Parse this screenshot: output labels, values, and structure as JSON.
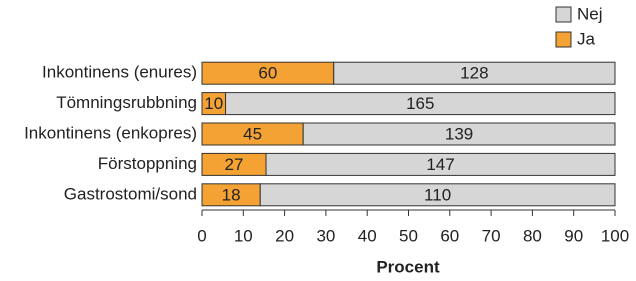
{
  "chart_data": {
    "type": "stacked-bar-horizontal",
    "xlabel": "Procent",
    "categories": [
      "Inkontinens (enures)",
      "Tömningsrubbning",
      "Inkontinens (enkopres)",
      "Förstoppning",
      "Gastrostomi/sond"
    ],
    "series": [
      {
        "name": "Ja",
        "color": "#f4a233",
        "values": [
          31.9,
          5.7,
          24.5,
          15.5,
          14.1
        ],
        "counts": [
          60,
          10,
          45,
          27,
          18
        ]
      },
      {
        "name": "Nej",
        "color": "#d6d6d6",
        "values": [
          68.1,
          94.3,
          75.5,
          84.5,
          85.9
        ],
        "counts": [
          128,
          165,
          139,
          147,
          110
        ]
      }
    ],
    "xlim": [
      0,
      100
    ],
    "xticks": [
      0,
      10,
      20,
      30,
      40,
      50,
      60,
      70,
      80,
      90,
      100
    ]
  }
}
